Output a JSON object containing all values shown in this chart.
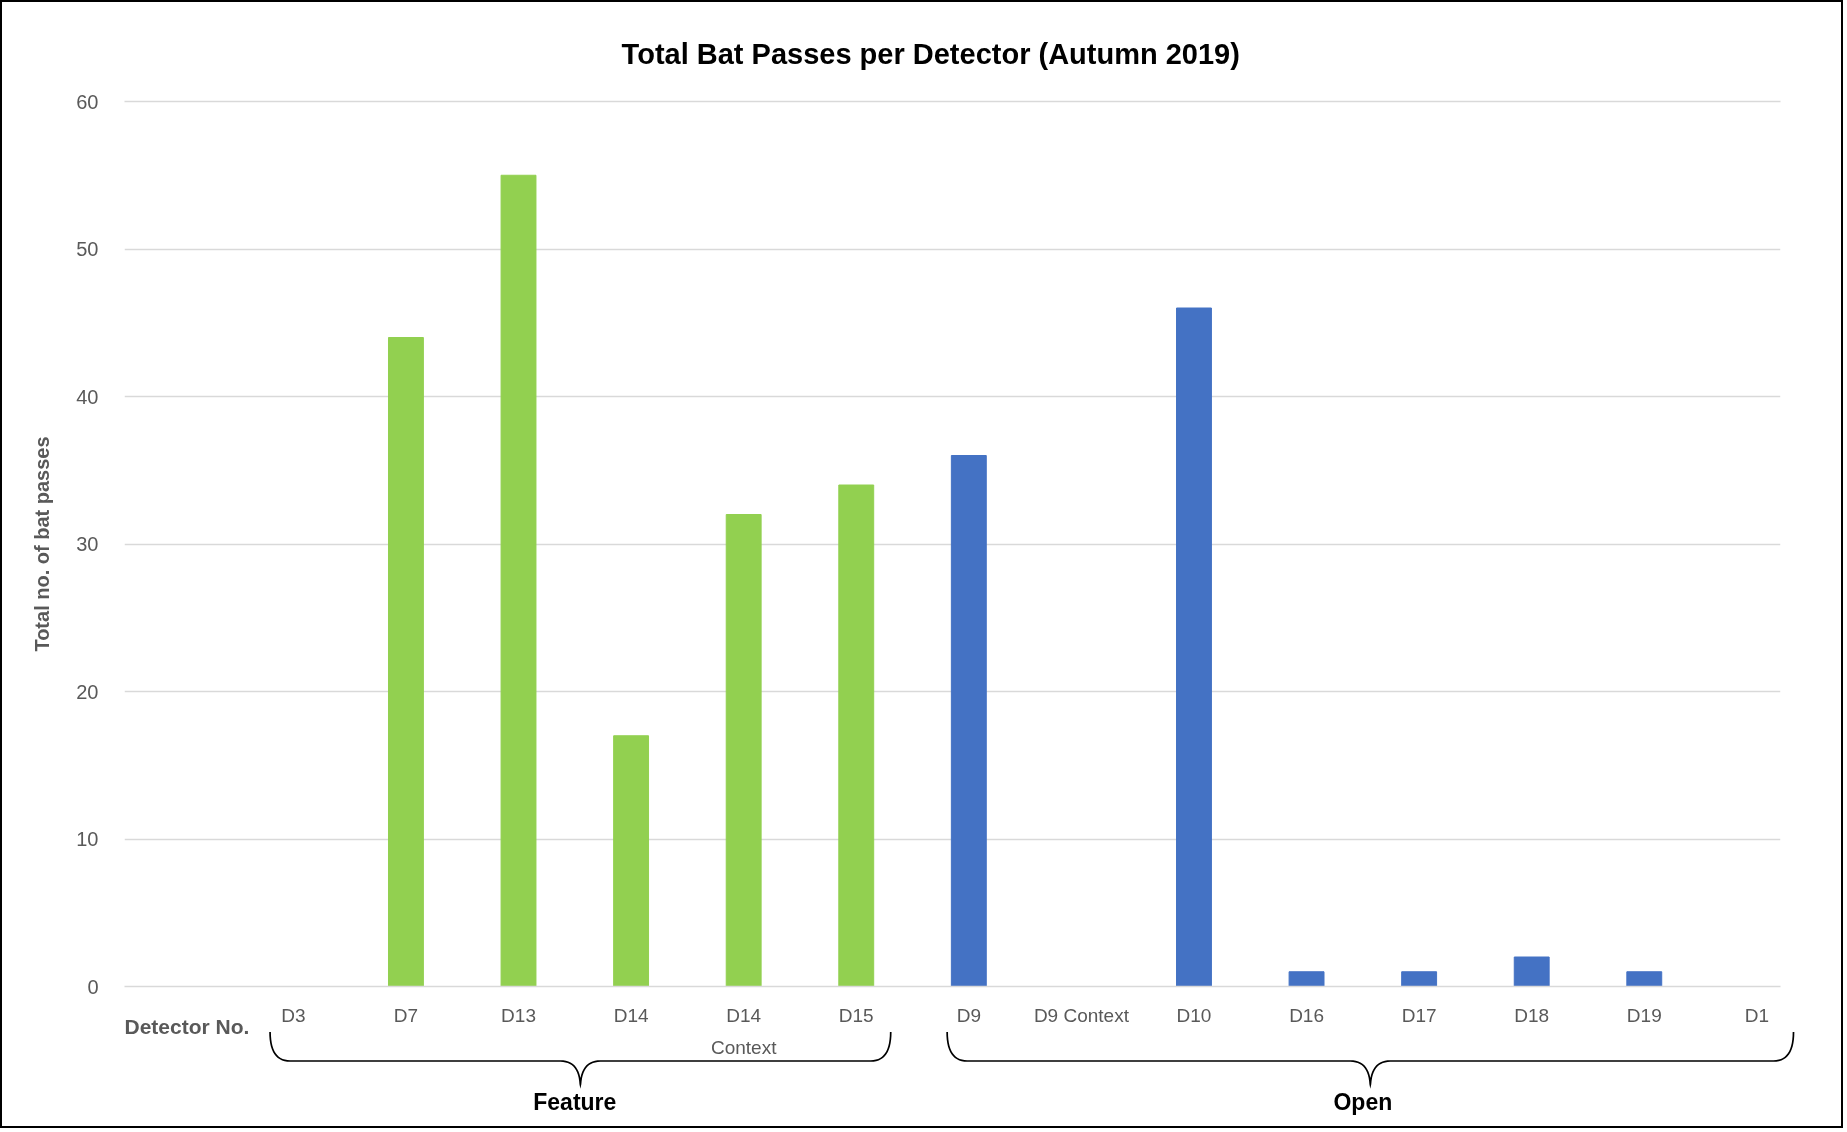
{
  "chart_data": {
    "type": "bar",
    "title": "Total Bat Passes per Detector (Autumn 2019)",
    "xlabel": "Detector No.",
    "ylabel": "Total no. of bat passes",
    "categories": [
      "D3",
      "D7",
      "D13",
      "D14",
      "D14\nContext",
      "D15",
      "D9",
      "D9 Context",
      "D10",
      "D16",
      "D17",
      "D18",
      "D19",
      "D1"
    ],
    "series": [
      {
        "color": "#92d050",
        "values": [
          0,
          44,
          55,
          17,
          32,
          34,
          null,
          null,
          null,
          null,
          null,
          null,
          null,
          null
        ]
      },
      {
        "color": "#4472c4",
        "values": [
          null,
          null,
          null,
          null,
          null,
          null,
          36,
          0,
          46,
          1,
          1,
          2,
          1,
          0
        ]
      }
    ],
    "annotations": [
      "Feature",
      "Open"
    ],
    "ylim": [
      0,
      60
    ],
    "yticks": [
      0,
      10,
      20,
      30,
      40,
      50,
      60
    ],
    "grid": "y"
  }
}
